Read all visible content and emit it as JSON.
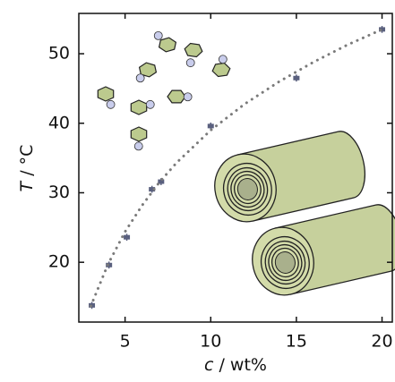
{
  "chart_data": {
    "type": "scatter",
    "x_label_symbol": "c",
    "x_label_unit": " / wt%",
    "y_label_symbol": "T",
    "y_label_unit": " / °C",
    "xlim": [
      2.3,
      20.6
    ],
    "xticks": [
      5,
      10,
      15,
      20
    ],
    "ylim": [
      11.4,
      55.8
    ],
    "yticks": [
      20,
      30,
      40,
      50
    ],
    "series": [
      {
        "kind": "points",
        "color": "#5a607e",
        "x": [
          3.06,
          4.06,
          5.1,
          6.57,
          7.1,
          10,
          15,
          20
        ],
        "values": [
          13.8,
          19.6,
          23.6,
          30.5,
          31.6,
          39.6,
          46.5,
          53.5
        ],
        "errors": [
          0.5,
          0.5,
          0.5,
          0.5,
          0.5,
          0.5,
          0.5,
          0.5
        ]
      },
      {
        "kind": "fit",
        "color": "#7a7a7a",
        "x": [
          3,
          4,
          5,
          6,
          7,
          8,
          10,
          12,
          14,
          16,
          18,
          20
        ],
        "values": [
          13.7,
          19.7,
          24.4,
          28.2,
          31.5,
          34.3,
          39.0,
          42.8,
          46.0,
          48.8,
          51.3,
          53.5
        ]
      },
      {
        "kind": "circles",
        "color": "#c9cdec",
        "x": [
          5.89,
          6.94,
          8.82,
          8.66,
          10.71,
          6.47,
          4.16,
          5.79
        ],
        "values": [
          46.5,
          52.6,
          48.7,
          43.8,
          49.2,
          42.7,
          42.7,
          36.7
        ]
      }
    ]
  }
}
